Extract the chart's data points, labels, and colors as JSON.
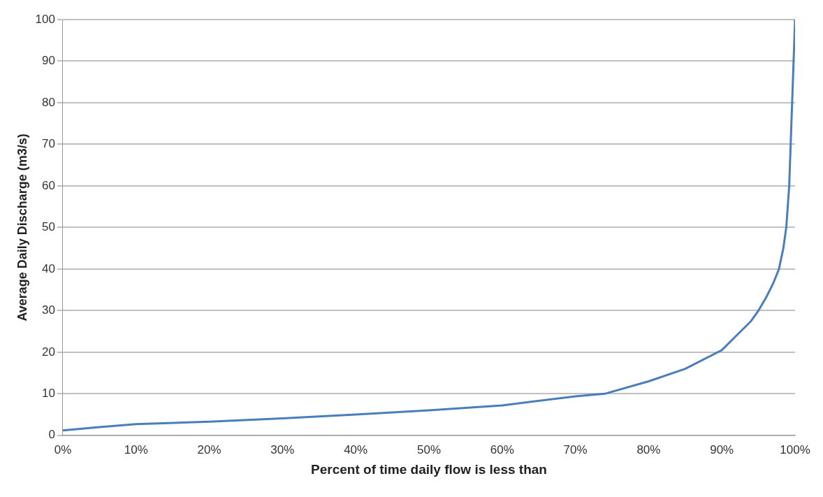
{
  "chart_data": {
    "type": "line",
    "xlabel": "Percent of time daily flow is less than",
    "ylabel": "Average Daily Discharge (m3/s)",
    "x": [
      0,
      5,
      10,
      20,
      30,
      40,
      50,
      60,
      70,
      74,
      80,
      85,
      90,
      92,
      94,
      95,
      96,
      97,
      97.8,
      98.4,
      98.8,
      99.2,
      99.4,
      99.6,
      99.8,
      100
    ],
    "series": [
      {
        "color": "#4a7ebb",
        "values": [
          1.2,
          2,
          2.7,
          3.3,
          4.1,
          5,
          6,
          7.2,
          9.4,
          10,
          13,
          16,
          20.5,
          24,
          27.5,
          30,
          33,
          36.5,
          40,
          45,
          50,
          60,
          70,
          80,
          90,
          100
        ]
      }
    ],
    "xlim": [
      0,
      100
    ],
    "xticks": [
      {
        "value": 0,
        "label": "0%"
      },
      {
        "value": 10,
        "label": "10%"
      },
      {
        "value": 20,
        "label": "20%"
      },
      {
        "value": 30,
        "label": "30%"
      },
      {
        "value": 40,
        "label": "40%"
      },
      {
        "value": 50,
        "label": "50%"
      },
      {
        "value": 60,
        "label": "60%"
      },
      {
        "value": 70,
        "label": "70%"
      },
      {
        "value": 80,
        "label": "80%"
      },
      {
        "value": 90,
        "label": "90%"
      },
      {
        "value": 100,
        "label": "100%"
      }
    ],
    "ylim": [
      0,
      100
    ],
    "yticks": [
      0,
      10,
      20,
      30,
      40,
      50,
      60,
      70,
      80,
      90,
      100
    ],
    "grid": "y",
    "legend": false,
    "marker": "none",
    "line_style": "solid"
  }
}
